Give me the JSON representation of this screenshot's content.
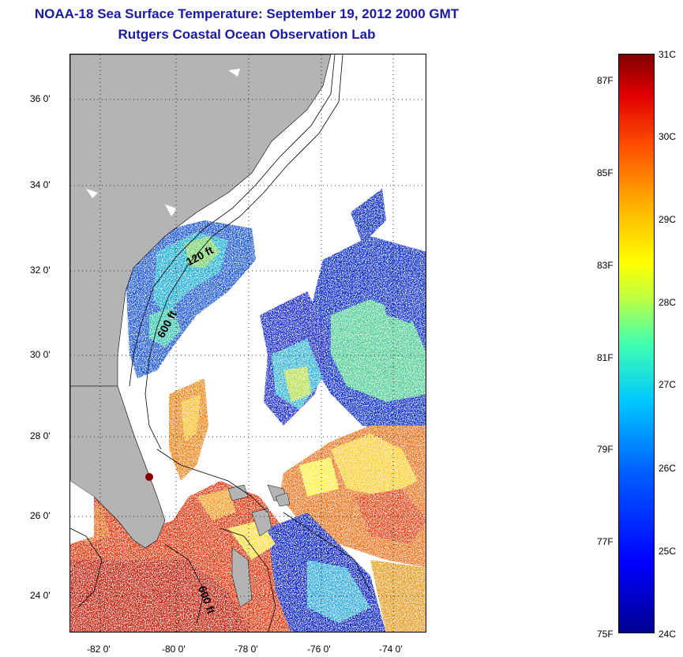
{
  "title": {
    "line1": "NOAA-18 Sea Surface Temperature:  September 19, 2012 2000 GMT",
    "line2": "Rutgers Coastal Ocean Observation Lab"
  },
  "map": {
    "lat_labels": [
      "36 0'",
      "34 0'",
      "32 0'",
      "30 0'",
      "28 0'",
      "26 0'",
      "24 0'"
    ],
    "lon_labels": [
      "-82 0'",
      "-80 0'",
      "-78 0'",
      "-76 0'",
      "-74 0'"
    ],
    "isobath_labels": [
      "120 ft",
      "600 ft",
      "600 ft"
    ],
    "land_color": "#b4b4b4",
    "grid": "dotted"
  },
  "colorbar": {
    "celsius_labels": [
      "31C",
      "30C",
      "29C",
      "28C",
      "27C",
      "26C",
      "25C",
      "24C"
    ],
    "fahrenheit_labels": [
      "87F",
      "85F",
      "83F",
      "81F",
      "79F",
      "77F",
      "75F"
    ],
    "range_c": [
      24,
      31
    ],
    "colormap": "jet"
  }
}
